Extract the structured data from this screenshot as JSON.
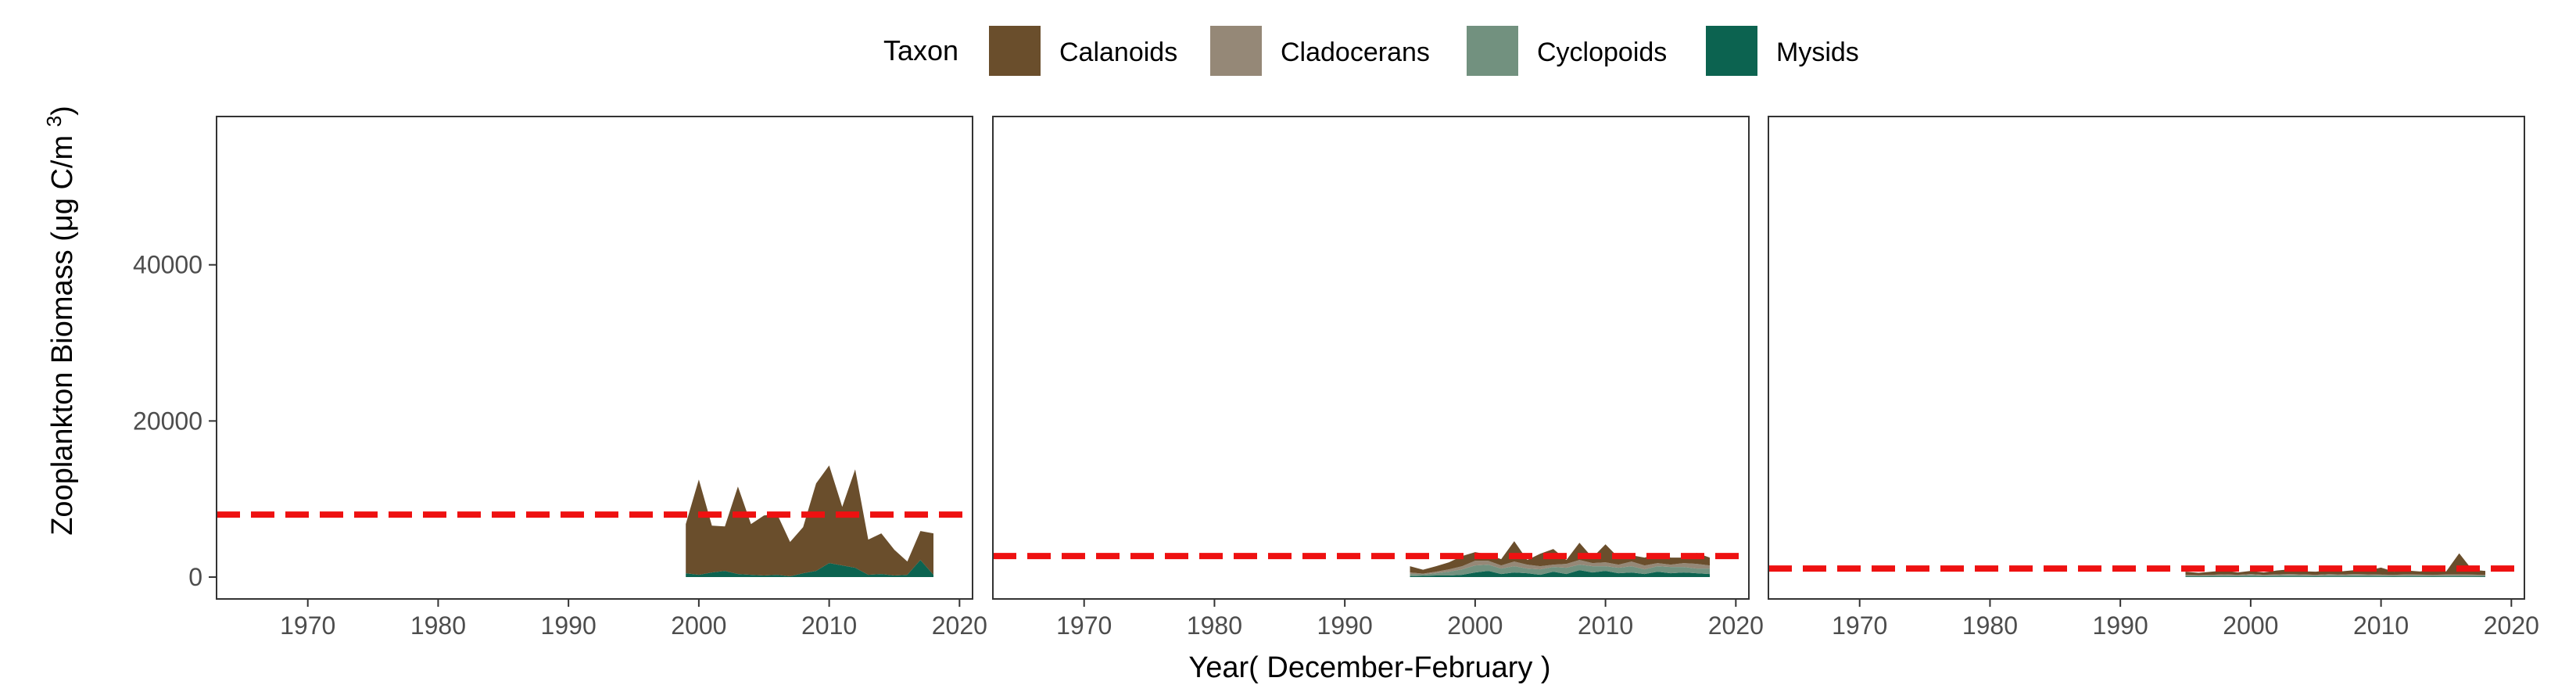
{
  "chart_data": {
    "type": "area",
    "stacked": true,
    "facets": 3,
    "xlabel": "Year( December-February )",
    "ylabel_main": "Zooplankton Biomass (",
    "ylabel_mu": "μ",
    "ylabel_unit": "g C/m ",
    "ylabel_sup": "3",
    "ylabel_close": ")",
    "xlim": [
      1963,
      2021
    ],
    "ylim": [
      -2800,
      59000
    ],
    "x_ticks": [
      1970,
      1980,
      1990,
      2000,
      2010,
      2020
    ],
    "x_tick_labels": [
      "1970",
      "1980",
      "1990",
      "2000",
      "2010",
      "2020"
    ],
    "y_ticks": [
      0,
      20000,
      40000
    ],
    "y_tick_labels": [
      "0",
      "20000",
      "40000"
    ],
    "grid": false,
    "legend": {
      "title": "Taxon",
      "position": "top",
      "items": [
        {
          "name": "Calanoids",
          "color": "#6A4E2C"
        },
        {
          "name": "Cladocerans",
          "color": "#958877"
        },
        {
          "name": "Cyclopoids",
          "color": "#72917F"
        },
        {
          "name": "Mysids",
          "color": "#0C6350"
        }
      ]
    },
    "reference_line_color": "#EE1111",
    "panels": [
      {
        "reference_line": 8000,
        "x": [
          1999,
          2000,
          2001,
          2002,
          2003,
          2004,
          2005,
          2006,
          2007,
          2008,
          2009,
          2010,
          2011,
          2012,
          2013,
          2014,
          2015,
          2016,
          2017,
          2018
        ],
        "series": [
          {
            "name": "Mysids",
            "values": [
              500,
              300,
              600,
              800,
              400,
              300,
              200,
              300,
              100,
              500,
              800,
              1800,
              1500,
              1200,
              300,
              400,
              200,
              300,
              2200,
              300
            ]
          },
          {
            "name": "Cyclopoids",
            "values": [
              0,
              0,
              0,
              0,
              0,
              0,
              0,
              0,
              0,
              0,
              0,
              0,
              0,
              0,
              0,
              0,
              0,
              0,
              0,
              0
            ]
          },
          {
            "name": "Cladocerans",
            "values": [
              0,
              0,
              0,
              0,
              0,
              0,
              0,
              0,
              0,
              0,
              0,
              0,
              0,
              0,
              0,
              0,
              0,
              0,
              0,
              0
            ]
          },
          {
            "name": "Calanoids",
            "values": [
              6300,
              12200,
              6000,
              5700,
              11200,
              6500,
              7700,
              7800,
              4400,
              5900,
              11200,
              12500,
              7500,
              12600,
              4500,
              5200,
              3300,
              1700,
              3700,
              5300
            ]
          }
        ]
      },
      {
        "reference_line": 2700,
        "x": [
          1995,
          1996,
          1997,
          1998,
          1999,
          2000,
          2001,
          2002,
          2003,
          2004,
          2005,
          2006,
          2007,
          2008,
          2009,
          2010,
          2011,
          2012,
          2013,
          2014,
          2015,
          2016,
          2017,
          2018
        ],
        "series": [
          {
            "name": "Mysids",
            "values": [
              100,
              150,
              200,
              200,
              300,
              600,
              800,
              400,
              600,
              500,
              300,
              700,
              400,
              900,
              600,
              800,
              500,
              600,
              400,
              700,
              500,
              600,
              500,
              400
            ]
          },
          {
            "name": "Cyclopoids",
            "values": [
              300,
              200,
              300,
              500,
              700,
              900,
              800,
              700,
              800,
              600,
              700,
              600,
              800,
              700,
              800,
              600,
              700,
              800,
              600,
              700,
              800,
              700,
              600,
              700
            ]
          },
          {
            "name": "Cladocerans",
            "values": [
              200,
              100,
              200,
              300,
              400,
              600,
              500,
              400,
              600,
              500,
              400,
              300,
              500,
              600,
              400,
              500,
              400,
              600,
              500,
              400,
              300,
              500,
              600,
              400
            ]
          },
          {
            "name": "Calanoids",
            "values": [
              800,
              500,
              700,
              900,
              1300,
              1100,
              800,
              800,
              2600,
              600,
              1600,
              2000,
              500,
              2200,
              700,
              2300,
              900,
              800,
              1000,
              1200,
              900,
              700,
              1400,
              1000
            ]
          }
        ]
      },
      {
        "reference_line": 1100,
        "x": [
          1995,
          1996,
          1997,
          1998,
          1999,
          2000,
          2001,
          2002,
          2003,
          2004,
          2005,
          2006,
          2007,
          2008,
          2009,
          2010,
          2011,
          2012,
          2013,
          2014,
          2015,
          2016,
          2017,
          2018
        ],
        "series": [
          {
            "name": "Mysids",
            "values": [
              50,
              50,
              50,
              60,
              50,
              80,
              50,
              60,
              80,
              60,
              50,
              70,
              60,
              80,
              70,
              60,
              50,
              70,
              60,
              50,
              60,
              70,
              60,
              50
            ]
          },
          {
            "name": "Cyclopoids",
            "values": [
              150,
              120,
              150,
              180,
              150,
              200,
              150,
              180,
              200,
              180,
              150,
              200,
              180,
              200,
              180,
              160,
              150,
              170,
              160,
              150,
              160,
              170,
              160,
              150
            ]
          },
          {
            "name": "Cladocerans",
            "values": [
              100,
              80,
              100,
              120,
              100,
              120,
              100,
              110,
              120,
              110,
              100,
              120,
              110,
              120,
              110,
              100,
              100,
              110,
              100,
              100,
              110,
              110,
              100,
              100
            ]
          },
          {
            "name": "Calanoids",
            "values": [
              400,
              300,
              400,
              500,
              300,
              400,
              300,
              500,
              600,
              400,
              400,
              500,
              400,
              500,
              500,
              900,
              400,
              500,
              400,
              700,
              400,
              2700,
              600,
              500
            ]
          }
        ]
      }
    ]
  }
}
